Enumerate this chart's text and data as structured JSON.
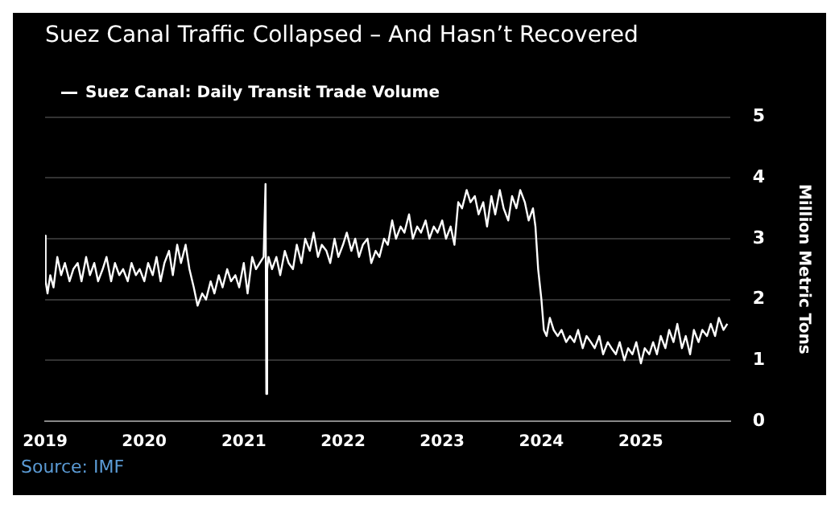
{
  "chart_data": {
    "type": "line",
    "title": "Suez Canal Traffic Collapsed – And Hasn’t Recovered",
    "ylabel": "Million Metric Tons",
    "annotations": [
      "Source: IMF"
    ],
    "x": [
      "2019-01-01",
      "2019-01-03",
      "2019-01-10",
      "2019-01-20",
      "2019-02-01",
      "2019-02-15",
      "2019-03-01",
      "2019-03-15",
      "2019-04-01",
      "2019-04-15",
      "2019-05-01",
      "2019-05-15",
      "2019-06-01",
      "2019-06-15",
      "2019-07-01",
      "2019-07-15",
      "2019-08-01",
      "2019-08-15",
      "2019-09-01",
      "2019-09-15",
      "2019-10-01",
      "2019-10-15",
      "2019-11-01",
      "2019-11-15",
      "2019-12-01",
      "2019-12-15",
      "2020-01-01",
      "2020-01-15",
      "2020-02-01",
      "2020-02-15",
      "2020-03-01",
      "2020-03-15",
      "2020-04-01",
      "2020-04-15",
      "2020-05-01",
      "2020-05-15",
      "2020-06-01",
      "2020-06-15",
      "2020-07-01",
      "2020-07-15",
      "2020-08-01",
      "2020-08-15",
      "2020-09-01",
      "2020-09-15",
      "2020-10-01",
      "2020-10-15",
      "2020-11-01",
      "2020-11-15",
      "2020-12-01",
      "2020-12-15",
      "2021-01-01",
      "2021-01-15",
      "2021-02-01",
      "2021-02-15",
      "2021-03-01",
      "2021-03-15",
      "2021-03-22",
      "2021-03-25",
      "2021-03-28",
      "2021-04-02",
      "2021-04-15",
      "2021-05-01",
      "2021-05-15",
      "2021-06-01",
      "2021-06-15",
      "2021-07-01",
      "2021-07-15",
      "2021-08-01",
      "2021-08-15",
      "2021-09-01",
      "2021-09-15",
      "2021-10-01",
      "2021-10-15",
      "2021-11-01",
      "2021-11-15",
      "2021-12-01",
      "2021-12-15",
      "2022-01-01",
      "2022-01-15",
      "2022-02-01",
      "2022-02-15",
      "2022-03-01",
      "2022-03-15",
      "2022-04-01",
      "2022-04-15",
      "2022-05-01",
      "2022-05-15",
      "2022-06-01",
      "2022-06-15",
      "2022-07-01",
      "2022-07-15",
      "2022-08-01",
      "2022-08-15",
      "2022-09-01",
      "2022-09-15",
      "2022-10-01",
      "2022-10-15",
      "2022-11-01",
      "2022-11-15",
      "2022-12-01",
      "2022-12-15",
      "2023-01-01",
      "2023-01-15",
      "2023-02-01",
      "2023-02-15",
      "2023-03-01",
      "2023-03-15",
      "2023-04-01",
      "2023-04-15",
      "2023-05-01",
      "2023-05-15",
      "2023-06-01",
      "2023-06-15",
      "2023-07-01",
      "2023-07-15",
      "2023-08-01",
      "2023-08-15",
      "2023-09-01",
      "2023-09-15",
      "2023-10-01",
      "2023-10-15",
      "2023-11-01",
      "2023-11-15",
      "2023-12-01",
      "2023-12-10",
      "2023-12-20",
      "2024-01-01",
      "2024-01-10",
      "2024-01-20",
      "2024-02-01",
      "2024-02-15",
      "2024-03-01",
      "2024-03-15",
      "2024-04-01",
      "2024-04-15",
      "2024-05-01",
      "2024-05-15",
      "2024-06-01",
      "2024-06-15",
      "2024-07-01",
      "2024-07-15",
      "2024-08-01",
      "2024-08-15",
      "2024-09-01",
      "2024-09-15",
      "2024-10-01",
      "2024-10-15",
      "2024-11-01",
      "2024-11-15",
      "2024-12-01",
      "2024-12-15",
      "2025-01-01",
      "2025-01-15",
      "2025-02-01",
      "2025-02-15",
      "2025-03-01",
      "2025-03-15",
      "2025-04-01",
      "2025-04-15",
      "2025-05-01",
      "2025-05-15",
      "2025-06-01",
      "2025-06-15",
      "2025-07-01",
      "2025-07-15",
      "2025-08-01",
      "2025-08-15",
      "2025-09-01",
      "2025-09-15",
      "2025-10-01",
      "2025-10-15",
      "2025-11-01",
      "2025-11-15"
    ],
    "series": [
      {
        "name": "Suez Canal: Daily Transit Trade Volume",
        "color": "#ffffff",
        "values": [
          3.05,
          2.3,
          2.1,
          2.4,
          2.2,
          2.7,
          2.4,
          2.6,
          2.3,
          2.5,
          2.6,
          2.3,
          2.7,
          2.4,
          2.6,
          2.3,
          2.5,
          2.7,
          2.3,
          2.6,
          2.4,
          2.5,
          2.3,
          2.6,
          2.4,
          2.5,
          2.3,
          2.6,
          2.4,
          2.7,
          2.3,
          2.6,
          2.8,
          2.4,
          2.9,
          2.6,
          2.9,
          2.5,
          2.2,
          1.9,
          2.1,
          2.0,
          2.3,
          2.1,
          2.4,
          2.2,
          2.5,
          2.3,
          2.4,
          2.2,
          2.6,
          2.1,
          2.7,
          2.5,
          2.6,
          2.7,
          3.9,
          0.45,
          2.5,
          2.7,
          2.5,
          2.7,
          2.4,
          2.8,
          2.6,
          2.5,
          2.9,
          2.6,
          3.0,
          2.8,
          3.1,
          2.7,
          2.9,
          2.8,
          2.6,
          3.0,
          2.7,
          2.9,
          3.1,
          2.8,
          3.0,
          2.7,
          2.9,
          3.0,
          2.6,
          2.8,
          2.7,
          3.0,
          2.9,
          3.3,
          3.0,
          3.2,
          3.1,
          3.4,
          3.0,
          3.2,
          3.1,
          3.3,
          3.0,
          3.2,
          3.1,
          3.3,
          3.0,
          3.2,
          2.9,
          3.6,
          3.5,
          3.8,
          3.6,
          3.7,
          3.4,
          3.6,
          3.2,
          3.7,
          3.4,
          3.8,
          3.5,
          3.3,
          3.7,
          3.5,
          3.8,
          3.6,
          3.3,
          3.5,
          3.2,
          2.5,
          2.0,
          1.5,
          1.4,
          1.7,
          1.5,
          1.4,
          1.5,
          1.3,
          1.4,
          1.3,
          1.5,
          1.2,
          1.4,
          1.3,
          1.2,
          1.4,
          1.1,
          1.3,
          1.2,
          1.1,
          1.3,
          1.0,
          1.2,
          1.1,
          1.3,
          0.95,
          1.2,
          1.1,
          1.3,
          1.1,
          1.4,
          1.2,
          1.5,
          1.3,
          1.6,
          1.2,
          1.4,
          1.1,
          1.5,
          1.3,
          1.5,
          1.4,
          1.6,
          1.4,
          1.7,
          1.5,
          1.6
        ]
      }
    ],
    "xlim": [
      "2019-01-01",
      "2025-11-25"
    ],
    "xticks": [
      "2019",
      "2020",
      "2021",
      "2022",
      "2023",
      "2024",
      "2025"
    ],
    "ylim": [
      0,
      5
    ],
    "yticks": [
      0,
      1,
      2,
      3,
      4,
      5
    ],
    "grid": "y",
    "legend": "top left",
    "marker": "none",
    "line_style": "solid"
  }
}
